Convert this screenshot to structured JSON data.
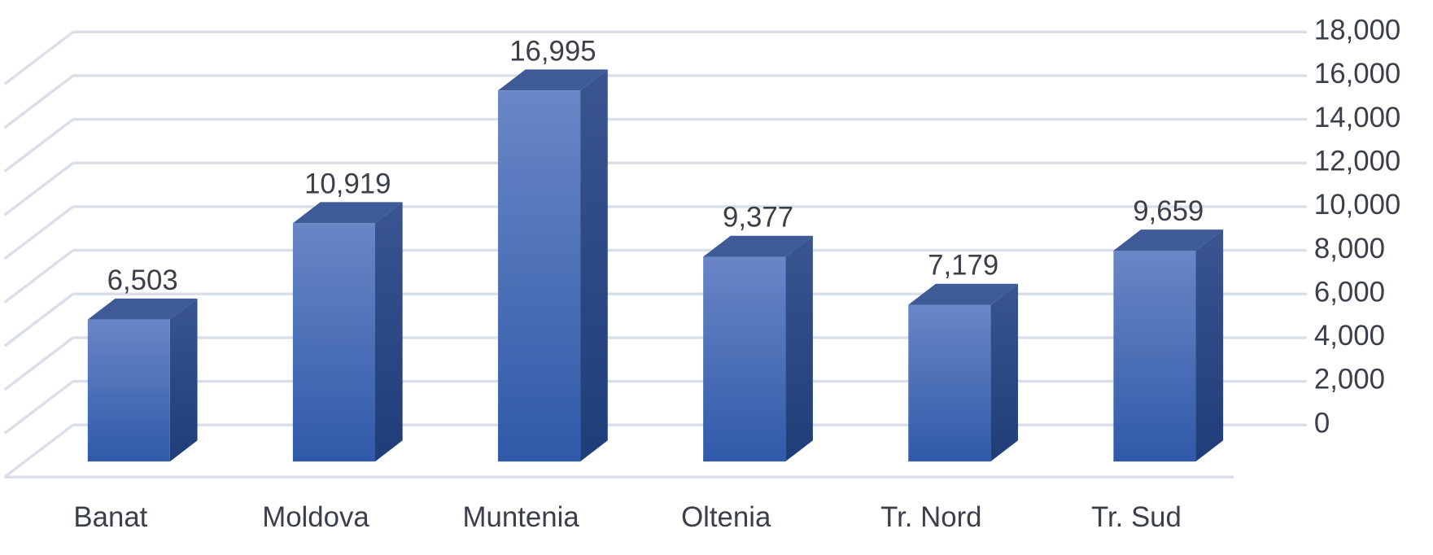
{
  "chart_data": {
    "type": "bar3d",
    "categories": [
      "Banat",
      "Moldova",
      "Muntenia",
      "Oltenia",
      "Tr. Nord",
      "Tr. Sud"
    ],
    "values": [
      6503,
      10919,
      16995,
      9377,
      7179,
      9659
    ],
    "value_labels": [
      "6,503",
      "10,919",
      "16,995",
      "9,377",
      "7,179",
      "9,659"
    ],
    "color": "#4a6dbb",
    "ylim": [
      0,
      18000
    ],
    "yticks": [
      {
        "value": 0,
        "label": "0"
      },
      {
        "value": 2000,
        "label": "2,000"
      },
      {
        "value": 4000,
        "label": "4,000"
      },
      {
        "value": 6000,
        "label": "6,000"
      },
      {
        "value": 8000,
        "label": "8,000"
      },
      {
        "value": 10000,
        "label": "10,000"
      },
      {
        "value": 12000,
        "label": "12,000"
      },
      {
        "value": 14000,
        "label": "14,000"
      },
      {
        "value": 16000,
        "label": "16,000"
      },
      {
        "value": 18000,
        "label": "18,000"
      }
    ],
    "grid": true
  }
}
